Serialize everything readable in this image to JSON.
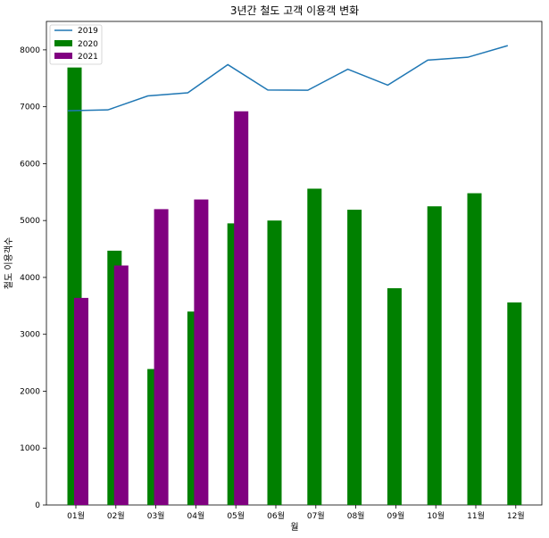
{
  "chart_data": {
    "type": "bar",
    "title": "3년간 철도 고객 이용객 변화",
    "xlabel": "월",
    "ylabel": "철도 이용객수",
    "categories": [
      "01월",
      "02월",
      "03월",
      "04월",
      "05월",
      "06월",
      "07월",
      "08월",
      "09월",
      "10월",
      "11월",
      "12월"
    ],
    "ylim": [
      0,
      8500
    ],
    "yticks": [
      0,
      1000,
      2000,
      3000,
      4000,
      5000,
      6000,
      7000,
      8000
    ],
    "legend_position": "top-left",
    "grid": false,
    "series": [
      {
        "name": "2019",
        "kind": "line",
        "color": "#1f77b4",
        "values": [
          6930,
          6945,
          7190,
          7245,
          7740,
          7295,
          7290,
          7660,
          7380,
          7820,
          7870,
          8075
        ]
      },
      {
        "name": "2020",
        "kind": "bar",
        "color": "#008000",
        "values": [
          7690,
          4470,
          2390,
          3400,
          4950,
          5000,
          5560,
          5190,
          3810,
          5250,
          5480,
          3560
        ]
      },
      {
        "name": "2021",
        "kind": "bar",
        "color": "#800080",
        "values": [
          3640,
          4210,
          5200,
          5370,
          6920,
          null,
          null,
          null,
          null,
          null,
          null,
          null
        ]
      }
    ]
  }
}
